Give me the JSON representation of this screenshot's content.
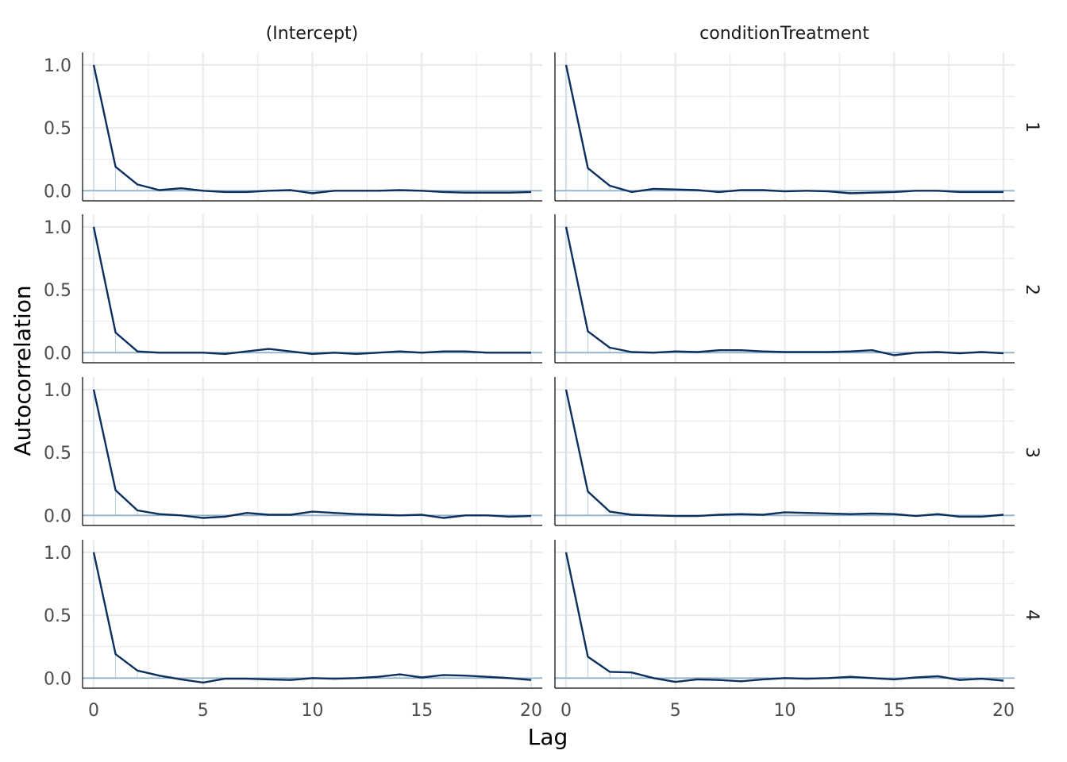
{
  "chart_data": {
    "type": "line",
    "xlabel": "Lag",
    "ylabel": "Autocorrelation",
    "xlim": [
      0,
      20
    ],
    "ylim": [
      -0.08,
      1.1
    ],
    "x_ticks": [
      0,
      5,
      10,
      15,
      20
    ],
    "y_ticks": [
      0.0,
      0.5,
      1.0
    ],
    "y_tick_labels": [
      "0.0",
      "0.5",
      "1.0"
    ],
    "columns": [
      "(Intercept)",
      "conditionTreatment"
    ],
    "rows": [
      "1",
      "2",
      "3",
      "4"
    ],
    "x": [
      0,
      1,
      2,
      3,
      4,
      5,
      6,
      7,
      8,
      9,
      10,
      11,
      12,
      13,
      14,
      15,
      16,
      17,
      18,
      19,
      20
    ],
    "reference_line": 0,
    "colors": {
      "line": "#0d2f5e",
      "reference": "#8cb0c9",
      "grid": "#ebebeb",
      "axis": "#000000"
    },
    "grid": true,
    "panels": [
      {
        "column": "(Intercept)",
        "row": "1",
        "values": [
          1.0,
          0.19,
          0.05,
          0.005,
          0.02,
          0.0,
          -0.01,
          -0.01,
          0.0,
          0.005,
          -0.02,
          0.0,
          0.0,
          0.0,
          0.005,
          0.0,
          -0.01,
          -0.015,
          -0.015,
          -0.015,
          -0.01
        ]
      },
      {
        "column": "conditionTreatment",
        "row": "1",
        "values": [
          1.0,
          0.18,
          0.04,
          -0.01,
          0.015,
          0.01,
          0.005,
          -0.01,
          0.005,
          0.005,
          -0.005,
          0.0,
          -0.005,
          -0.02,
          -0.015,
          -0.01,
          0.0,
          0.0,
          -0.01,
          -0.01,
          -0.01
        ]
      },
      {
        "column": "(Intercept)",
        "row": "2",
        "values": [
          1.0,
          0.16,
          0.01,
          0.0,
          0.0,
          0.0,
          -0.01,
          0.01,
          0.03,
          0.01,
          -0.01,
          0.0,
          -0.01,
          0.0,
          0.01,
          0.0,
          0.01,
          0.01,
          0.0,
          0.0,
          0.0
        ]
      },
      {
        "column": "conditionTreatment",
        "row": "2",
        "values": [
          1.0,
          0.17,
          0.04,
          0.005,
          0.0,
          0.01,
          0.005,
          0.02,
          0.02,
          0.01,
          0.005,
          0.005,
          0.005,
          0.01,
          0.02,
          -0.02,
          0.0,
          0.005,
          -0.005,
          0.005,
          -0.005
        ]
      },
      {
        "column": "(Intercept)",
        "row": "3",
        "values": [
          1.0,
          0.2,
          0.04,
          0.01,
          0.0,
          -0.02,
          -0.01,
          0.02,
          0.005,
          0.005,
          0.03,
          0.02,
          0.01,
          0.005,
          0.0,
          0.005,
          -0.02,
          0.0,
          0.0,
          -0.01,
          -0.005
        ]
      },
      {
        "column": "conditionTreatment",
        "row": "3",
        "values": [
          1.0,
          0.19,
          0.03,
          0.005,
          0.0,
          -0.005,
          -0.005,
          0.005,
          0.01,
          0.005,
          0.025,
          0.02,
          0.015,
          0.01,
          0.015,
          0.01,
          -0.005,
          0.01,
          -0.01,
          -0.01,
          0.005
        ]
      },
      {
        "column": "(Intercept)",
        "row": "4",
        "values": [
          1.0,
          0.19,
          0.06,
          0.02,
          -0.01,
          -0.035,
          -0.005,
          -0.005,
          -0.01,
          -0.015,
          0.0,
          -0.005,
          0.0,
          0.01,
          0.03,
          0.005,
          0.025,
          0.02,
          0.01,
          0.0,
          -0.015
        ]
      },
      {
        "column": "conditionTreatment",
        "row": "4",
        "values": [
          1.0,
          0.17,
          0.05,
          0.045,
          0.0,
          -0.03,
          -0.01,
          -0.015,
          -0.025,
          -0.01,
          0.0,
          -0.005,
          0.0,
          0.01,
          0.0,
          -0.01,
          0.005,
          0.015,
          -0.015,
          -0.005,
          -0.02
        ]
      }
    ]
  }
}
